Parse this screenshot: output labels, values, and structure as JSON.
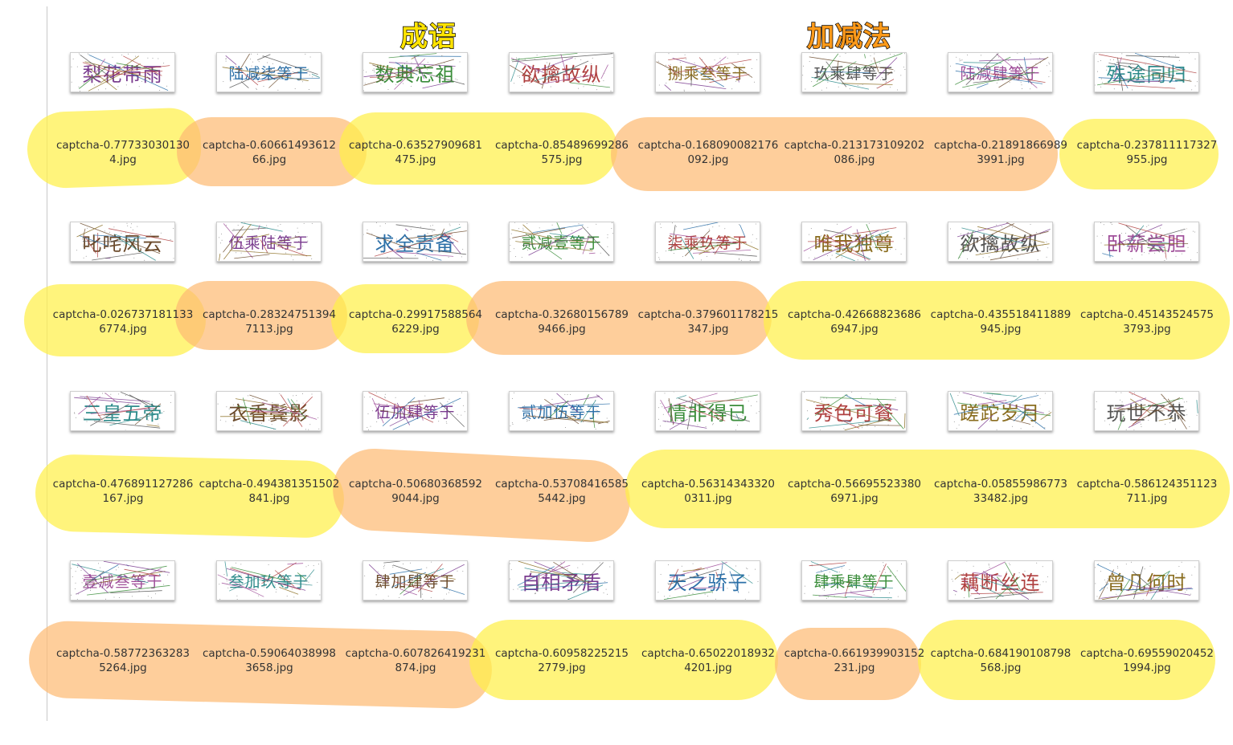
{
  "legend": {
    "idiom": "成语",
    "math": "加减法",
    "idiom_color": "#ffe300",
    "math_color": "#ff9a1a"
  },
  "files": [
    {
      "line1": "captcha-0.77733030130",
      "line2": "4.jpg",
      "captcha": "梨花带雨",
      "group": "idiom"
    },
    {
      "line1": "captcha-0.60661493612",
      "line2": "66.jpg",
      "captcha": "陆减柒等于",
      "group": "math"
    },
    {
      "line1": "captcha-0.63527909681",
      "line2": "475.jpg",
      "captcha": "数典忘祖",
      "group": "idiom"
    },
    {
      "line1": "captcha-0.85489699286",
      "line2": "575.jpg",
      "captcha": "欲擒故纵",
      "group": "idiom"
    },
    {
      "line1": "captcha-0.168090082176",
      "line2": "092.jpg",
      "captcha": "捌乘叁等于",
      "group": "math"
    },
    {
      "line1": "captcha-0.213173109202",
      "line2": "086.jpg",
      "captcha": "玖乘肆等于",
      "group": "math"
    },
    {
      "line1": "captcha-0.21891866989",
      "line2": "3991.jpg",
      "captcha": "陆减肆等于",
      "group": "math"
    },
    {
      "line1": "captcha-0.237811117327",
      "line2": "955.jpg",
      "captcha": "殊途同归",
      "group": "idiom"
    },
    {
      "line1": "captcha-0.026737181133",
      "line2": "6774.jpg",
      "captcha": "叱咤风云",
      "group": "idiom"
    },
    {
      "line1": "captcha-0.28324751394",
      "line2": "7113.jpg",
      "captcha": "伍乘陆等于",
      "group": "math"
    },
    {
      "line1": "captcha-0.29917588564",
      "line2": "6229.jpg",
      "captcha": "求全责备",
      "group": "idiom"
    },
    {
      "line1": "captcha-0.32680156789",
      "line2": "9466.jpg",
      "captcha": "贰减壹等于",
      "group": "math"
    },
    {
      "line1": "captcha-0.37960117821​5",
      "line2": "347.jpg",
      "captcha": "柒乘玖等于",
      "group": "math"
    },
    {
      "line1": "captcha-0.42668823686",
      "line2": "6947.jpg",
      "captcha": "唯我独尊",
      "group": "idiom"
    },
    {
      "line1": "captcha-0.435518411889",
      "line2": "945.jpg",
      "captcha": "欲擒故纵",
      "group": "idiom"
    },
    {
      "line1": "captcha-0.45143524575",
      "line2": "3793.jpg",
      "captcha": "卧薪尝胆",
      "group": "idiom"
    },
    {
      "line1": "captcha-0.476891127286",
      "line2": "167.jpg",
      "captcha": "三皇五帝",
      "group": "idiom"
    },
    {
      "line1": "captcha-0.494381351502",
      "line2": "841.jpg",
      "captcha": "衣香鬓影",
      "group": "idiom"
    },
    {
      "line1": "captcha-0.50680368592",
      "line2": "9044.jpg",
      "captcha": "伍加肆等于",
      "group": "math"
    },
    {
      "line1": "captcha-0.53708416585",
      "line2": "5442.jpg",
      "captcha": "贰加伍等于",
      "group": "math"
    },
    {
      "line1": "captcha-0.56314343320",
      "line2": "0311.jpg",
      "captcha": "情非得已",
      "group": "idiom"
    },
    {
      "line1": "captcha-0.56695523380",
      "line2": "6971.jpg",
      "captcha": "秀色可餐",
      "group": "idiom"
    },
    {
      "line1": "captcha-0.05855986773",
      "line2": "33482.jpg",
      "captcha": "蹉跎岁月",
      "group": "idiom"
    },
    {
      "line1": "captcha-0.586124351123",
      "line2": "711.jpg",
      "captcha": "玩世不恭",
      "group": "idiom"
    },
    {
      "line1": "captcha-0.58772363283",
      "line2": "5264.jpg",
      "captcha": "壹减叁等于",
      "group": "math"
    },
    {
      "line1": "captcha-0.59064038998",
      "line2": "3658.jpg",
      "captcha": "叁加玖等于",
      "group": "math"
    },
    {
      "line1": "captcha-0.607826419231",
      "line2": "874.jpg",
      "captcha": "肆加肆等于",
      "group": "math"
    },
    {
      "line1": "captcha-0.60958225215",
      "line2": "2779.jpg",
      "captcha": "自相矛盾",
      "group": "idiom"
    },
    {
      "line1": "captcha-0.65022018932",
      "line2": "4201.jpg",
      "captcha": "天之骄子",
      "group": "idiom"
    },
    {
      "line1": "captcha-0.661939903152",
      "line2": "231.jpg",
      "captcha": "肆乘肆等于",
      "group": "math"
    },
    {
      "line1": "captcha-0.684190108798",
      "line2": "568.jpg",
      "captcha": "藕断丝连",
      "group": "idiom"
    },
    {
      "line1": "captcha-0.69559020452",
      "line2": "1994.jpg",
      "captcha": "曾几何时",
      "group": "idiom"
    }
  ]
}
